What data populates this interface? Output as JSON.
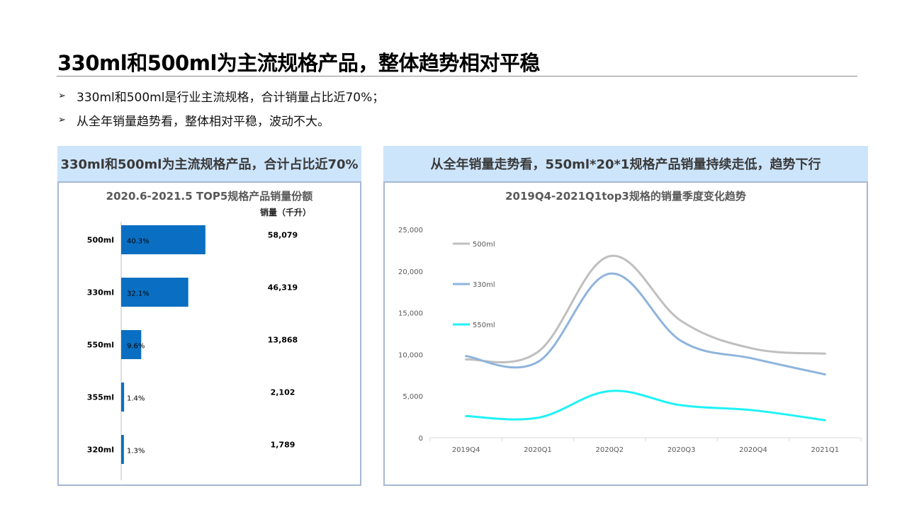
{
  "page": {
    "title": "330ml和500ml为主流规格产品，整体趋势相对平稳",
    "bullets": [
      "330ml和500ml是行业主流规格，合计销量占比近70%；",
      "从全年销量趋势看，整体相对平稳，波动不大。"
    ],
    "bullet_marker": "➢"
  },
  "left_panel": {
    "header": "330ml和500ml为主流规格产品，合计占比近70%"
  },
  "right_panel": {
    "header": "从全年销量走势看，550ml*20*1规格产品销量持续走低，趋势下行"
  },
  "colors": {
    "header_bg": "#cde5fb",
    "panel_border": "#a6b7d3",
    "bar": "#0a6fc2",
    "line_500ml": "#bfbfbf",
    "line_330ml": "#8eb4dc",
    "line_550ml": "#1ef2f5"
  },
  "chart_data": [
    {
      "type": "bar",
      "orientation": "horizontal",
      "title": "2020.6-2021.5 TOP5规格产品销量份额",
      "value_column_header": "销量（千升）",
      "categories": [
        "500ml",
        "330ml",
        "550ml",
        "355ml",
        "320ml"
      ],
      "share_pct": [
        40.3,
        32.1,
        9.6,
        1.4,
        1.3
      ],
      "share_labels": [
        "40.3%",
        "32.1%",
        "9.6%",
        "1.4%",
        "1.3%"
      ],
      "volume": [
        58079,
        46319,
        13868,
        2102,
        1789
      ],
      "volume_labels": [
        "58,079",
        "46,319",
        "13,868",
        "2,102",
        "1,789"
      ]
    },
    {
      "type": "line",
      "title": "2019Q4-2021Q1top3规格的销量季度变化趋势",
      "categories": [
        "2019Q4",
        "2020Q1",
        "2020Q2",
        "2020Q3",
        "2020Q4",
        "2021Q1"
      ],
      "ylim": [
        0,
        25000
      ],
      "yticks": [
        0,
        5000,
        10000,
        15000,
        20000,
        25000
      ],
      "ytick_labels": [
        "0",
        "5,000",
        "10,000",
        "15,000",
        "20,000",
        "25,000"
      ],
      "grid": false,
      "legend_position": "top-left",
      "series": [
        {
          "name": "500ml",
          "values": [
            9400,
            10300,
            21800,
            14000,
            10700,
            10100
          ]
        },
        {
          "name": "330ml",
          "values": [
            9800,
            9100,
            19700,
            11600,
            9500,
            7600
          ]
        },
        {
          "name": "550ml",
          "values": [
            2600,
            2400,
            5600,
            3900,
            3300,
            2100
          ]
        }
      ]
    }
  ]
}
